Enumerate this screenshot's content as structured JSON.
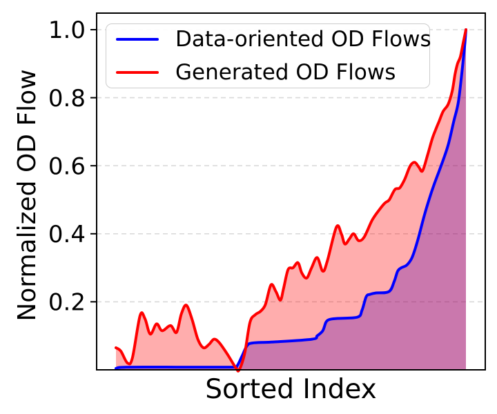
{
  "chart_data": {
    "type": "area",
    "title": "",
    "xlabel": "Sorted Index",
    "ylabel": "Normalized OD Flow",
    "xlim": [
      0,
      1
    ],
    "ylim": [
      0,
      1.05
    ],
    "x_tick_labels": [],
    "yticks": [
      {
        "value": 0.2,
        "label": "0.2"
      },
      {
        "value": 0.4,
        "label": "0.4"
      },
      {
        "value": 0.6,
        "label": "0.6"
      },
      {
        "value": 0.8,
        "label": "0.8"
      },
      {
        "value": 1.0,
        "label": "1.0"
      }
    ],
    "grid": "horizontal-dashed",
    "grid_color": "#d9d9d9",
    "legend_position": "upper left",
    "series": [
      {
        "name": "Data-oriented OD Flows",
        "color": "#0000ff",
        "fill": "rgba(0,0,255,0.30)",
        "points": [
          [
            0.0,
            0.004
          ],
          [
            0.03,
            0.008
          ],
          [
            0.2,
            0.008
          ],
          [
            0.33,
            0.008
          ],
          [
            0.345,
            0.01
          ],
          [
            0.36,
            0.04
          ],
          [
            0.374,
            0.07
          ],
          [
            0.39,
            0.079
          ],
          [
            0.45,
            0.082
          ],
          [
            0.56,
            0.09
          ],
          [
            0.575,
            0.1
          ],
          [
            0.591,
            0.115
          ],
          [
            0.6,
            0.14
          ],
          [
            0.61,
            0.148
          ],
          [
            0.63,
            0.151
          ],
          [
            0.69,
            0.155
          ],
          [
            0.703,
            0.175
          ],
          [
            0.715,
            0.215
          ],
          [
            0.726,
            0.222
          ],
          [
            0.742,
            0.226
          ],
          [
            0.78,
            0.23
          ],
          [
            0.795,
            0.26
          ],
          [
            0.805,
            0.29
          ],
          [
            0.815,
            0.3
          ],
          [
            0.831,
            0.308
          ],
          [
            0.846,
            0.33
          ],
          [
            0.862,
            0.38
          ],
          [
            0.88,
            0.45
          ],
          [
            0.896,
            0.505
          ],
          [
            0.909,
            0.545
          ],
          [
            0.929,
            0.6
          ],
          [
            0.949,
            0.66
          ],
          [
            0.965,
            0.73
          ],
          [
            0.978,
            0.785
          ],
          [
            0.988,
            0.87
          ],
          [
            0.996,
            0.95
          ],
          [
            1.0,
            1.0
          ]
        ]
      },
      {
        "name": "Generated OD Flows",
        "color": "#ff0000",
        "fill": "rgba(255,0,0,0.32)",
        "points": [
          [
            0.0,
            0.065
          ],
          [
            0.014,
            0.055
          ],
          [
            0.033,
            0.02
          ],
          [
            0.047,
            0.035
          ],
          [
            0.069,
            0.16
          ],
          [
            0.083,
            0.15
          ],
          [
            0.098,
            0.105
          ],
          [
            0.116,
            0.135
          ],
          [
            0.132,
            0.115
          ],
          [
            0.156,
            0.13
          ],
          [
            0.173,
            0.11
          ],
          [
            0.187,
            0.165
          ],
          [
            0.201,
            0.19
          ],
          [
            0.217,
            0.15
          ],
          [
            0.234,
            0.09
          ],
          [
            0.25,
            0.065
          ],
          [
            0.266,
            0.075
          ],
          [
            0.28,
            0.09
          ],
          [
            0.295,
            0.08
          ],
          [
            0.319,
            0.045
          ],
          [
            0.343,
            0.005
          ],
          [
            0.352,
            0.0
          ],
          [
            0.368,
            0.05
          ],
          [
            0.383,
            0.14
          ],
          [
            0.398,
            0.162
          ],
          [
            0.413,
            0.172
          ],
          [
            0.427,
            0.192
          ],
          [
            0.443,
            0.25
          ],
          [
            0.457,
            0.23
          ],
          [
            0.47,
            0.205
          ],
          [
            0.479,
            0.24
          ],
          [
            0.492,
            0.295
          ],
          [
            0.506,
            0.3
          ],
          [
            0.52,
            0.315
          ],
          [
            0.531,
            0.285
          ],
          [
            0.545,
            0.27
          ],
          [
            0.559,
            0.3
          ],
          [
            0.575,
            0.33
          ],
          [
            0.591,
            0.29
          ],
          [
            0.604,
            0.32
          ],
          [
            0.63,
            0.42
          ],
          [
            0.644,
            0.4
          ],
          [
            0.654,
            0.37
          ],
          [
            0.667,
            0.385
          ],
          [
            0.679,
            0.4
          ],
          [
            0.693,
            0.38
          ],
          [
            0.709,
            0.39
          ],
          [
            0.732,
            0.44
          ],
          [
            0.752,
            0.47
          ],
          [
            0.768,
            0.49
          ],
          [
            0.781,
            0.5
          ],
          [
            0.797,
            0.53
          ],
          [
            0.811,
            0.535
          ],
          [
            0.825,
            0.56
          ],
          [
            0.841,
            0.6
          ],
          [
            0.854,
            0.61
          ],
          [
            0.866,
            0.595
          ],
          [
            0.876,
            0.585
          ],
          [
            0.89,
            0.63
          ],
          [
            0.904,
            0.68
          ],
          [
            0.915,
            0.71
          ],
          [
            0.923,
            0.73
          ],
          [
            0.935,
            0.76
          ],
          [
            0.949,
            0.78
          ],
          [
            0.961,
            0.82
          ],
          [
            0.969,
            0.87
          ],
          [
            0.976,
            0.9
          ],
          [
            0.984,
            0.92
          ],
          [
            0.992,
            0.96
          ],
          [
            1.0,
            1.0
          ]
        ]
      }
    ]
  },
  "legend": {
    "items": [
      {
        "label": "Data-oriented OD Flows",
        "color": "#0000ff"
      },
      {
        "label": "Generated OD Flows",
        "color": "#ff0000"
      }
    ]
  }
}
